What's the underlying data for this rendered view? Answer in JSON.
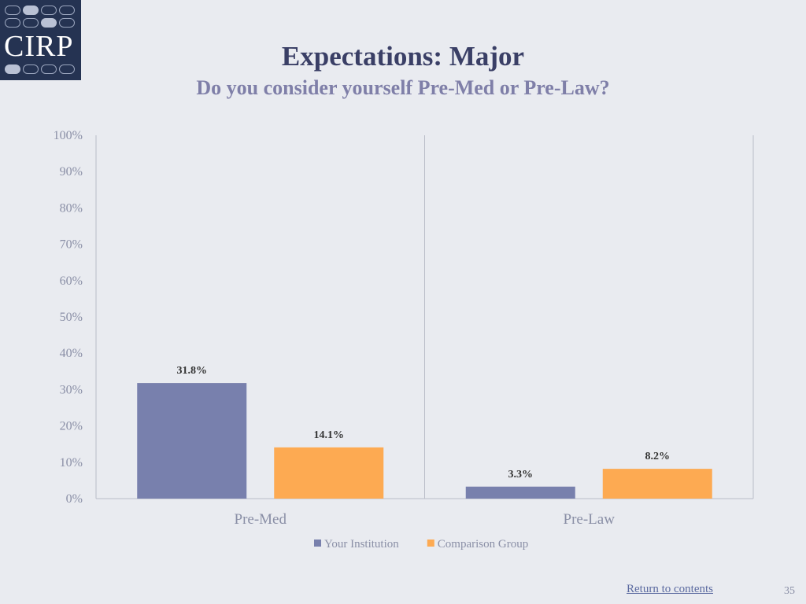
{
  "logo": {
    "text": "CIRP"
  },
  "slide": {
    "title": "Expectations: Major",
    "subtitle": "Do you consider yourself Pre-Med or Pre-Law?",
    "footer_link": "Return to contents",
    "page_number": "35"
  },
  "colors": {
    "your_institution": "#7880ad",
    "comparison_group": "#fdaa52",
    "axis_text": "#8a8fa6",
    "label_text": "#333333"
  },
  "chart_data": {
    "type": "bar",
    "categories": [
      "Pre-Med",
      "Pre-Law"
    ],
    "series": [
      {
        "name": "Your Institution",
        "values": [
          31.8,
          3.3
        ],
        "labels": [
          "31.8%",
          "3.3%"
        ]
      },
      {
        "name": "Comparison Group",
        "values": [
          14.1,
          8.2
        ],
        "labels": [
          "14.1%",
          "8.2%"
        ]
      }
    ],
    "ylim": [
      0,
      100
    ],
    "yticks": [
      "0%",
      "10%",
      "20%",
      "30%",
      "40%",
      "50%",
      "60%",
      "70%",
      "80%",
      "90%",
      "100%"
    ],
    "legend_position": "bottom",
    "grid": false
  }
}
